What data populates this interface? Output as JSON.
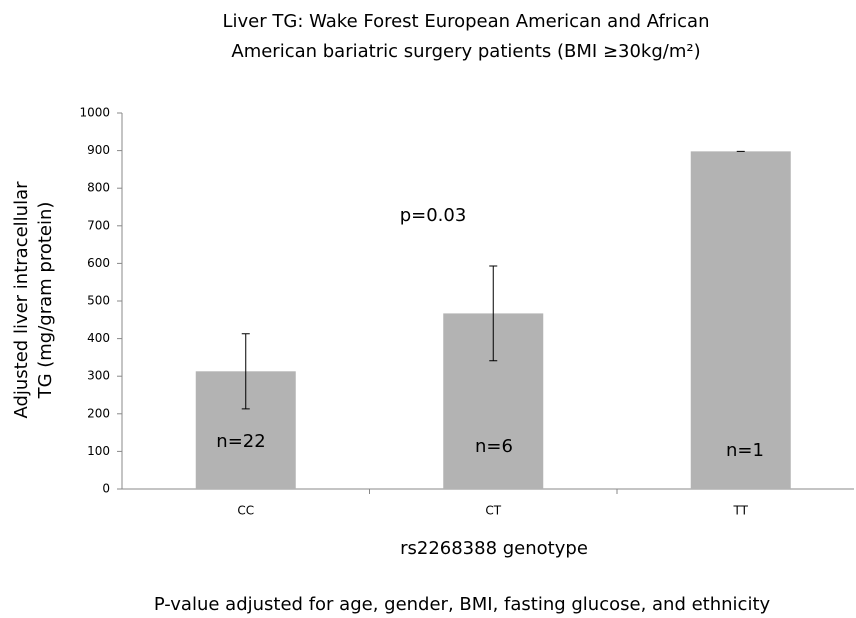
{
  "chart_data": {
    "type": "bar",
    "title": [
      "Liver TG: Wake Forest European American and African",
      "American bariatric surgery patients (BMI ≥30kg/m²)"
    ],
    "xlabel": "rs2268388 genotype",
    "ylabel": [
      "Adjusted liver intracellular",
      "TG (mg/gram protein)"
    ],
    "categories": [
      "CC",
      "CT",
      "TT"
    ],
    "values": [
      313,
      467,
      898
    ],
    "errors": [
      100,
      126,
      0
    ],
    "color": "#b3b3b3",
    "ylim": [
      0,
      1000
    ],
    "yticks": [
      0,
      100,
      200,
      300,
      400,
      500,
      600,
      700,
      800,
      900,
      1000
    ],
    "annotations": [
      "p=0.03",
      "n=22",
      "n=6",
      "n=1"
    ],
    "footnote": "P-value adjusted for age, gender, BMI, fasting glucose, and ethnicity"
  }
}
